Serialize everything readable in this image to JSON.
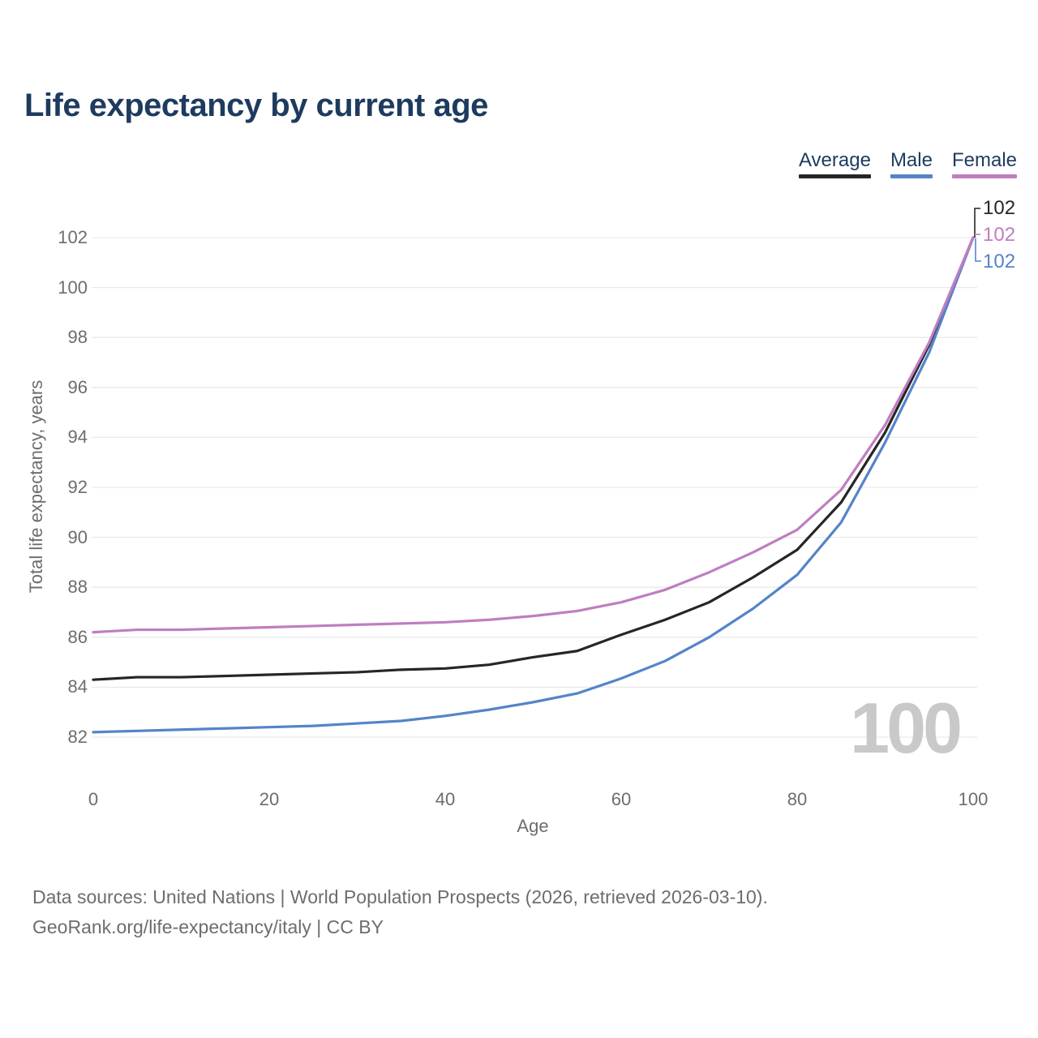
{
  "title": "Life expectancy by current age",
  "watermark": "100",
  "legend": [
    {
      "label": "Average",
      "color": "#262626"
    },
    {
      "label": "Male",
      "color": "#5484c9"
    },
    {
      "label": "Female",
      "color": "#bf7ec0"
    }
  ],
  "chart_data": {
    "type": "line",
    "title": "Life expectancy by current age",
    "xlabel": "Age",
    "ylabel": "Total life expectancy, years",
    "xlim": [
      0,
      100
    ],
    "ylim": [
      82,
      102
    ],
    "grid": "horizontal",
    "grid_color": "#e9e9e9",
    "xticks": [
      0,
      20,
      40,
      60,
      80,
      100
    ],
    "yticks": [
      82,
      84,
      86,
      88,
      90,
      92,
      94,
      96,
      98,
      100,
      102
    ],
    "x": [
      0,
      5,
      10,
      15,
      20,
      25,
      30,
      35,
      40,
      45,
      50,
      55,
      60,
      65,
      70,
      75,
      80,
      85,
      90,
      95,
      100
    ],
    "series": [
      {
        "name": "Average",
        "color": "#262626",
        "end_label": "102",
        "values": [
          84.3,
          84.4,
          84.4,
          84.45,
          84.5,
          84.55,
          84.6,
          84.7,
          84.75,
          84.9,
          85.2,
          85.45,
          86.1,
          86.7,
          87.4,
          88.4,
          89.5,
          91.4,
          94.2,
          97.7,
          102
        ]
      },
      {
        "name": "Male",
        "color": "#5484c9",
        "end_label": "102",
        "values": [
          82.2,
          82.25,
          82.3,
          82.35,
          82.4,
          82.45,
          82.55,
          82.65,
          82.85,
          83.1,
          83.4,
          83.75,
          84.35,
          85.05,
          86.0,
          87.15,
          88.5,
          90.6,
          93.8,
          97.4,
          102
        ]
      },
      {
        "name": "Female",
        "color": "#bf7ec0",
        "end_label": "102",
        "values": [
          86.2,
          86.3,
          86.3,
          86.35,
          86.4,
          86.45,
          86.5,
          86.55,
          86.6,
          86.7,
          86.85,
          87.05,
          87.4,
          87.9,
          88.6,
          89.4,
          90.3,
          91.9,
          94.5,
          97.8,
          102
        ]
      }
    ]
  },
  "footer": {
    "line1": "Data sources: United Nations | World Population Prospects (2026, retrieved 2026-03-10).",
    "line2": "GeoRank.org/life-expectancy/italy | CC BY"
  }
}
